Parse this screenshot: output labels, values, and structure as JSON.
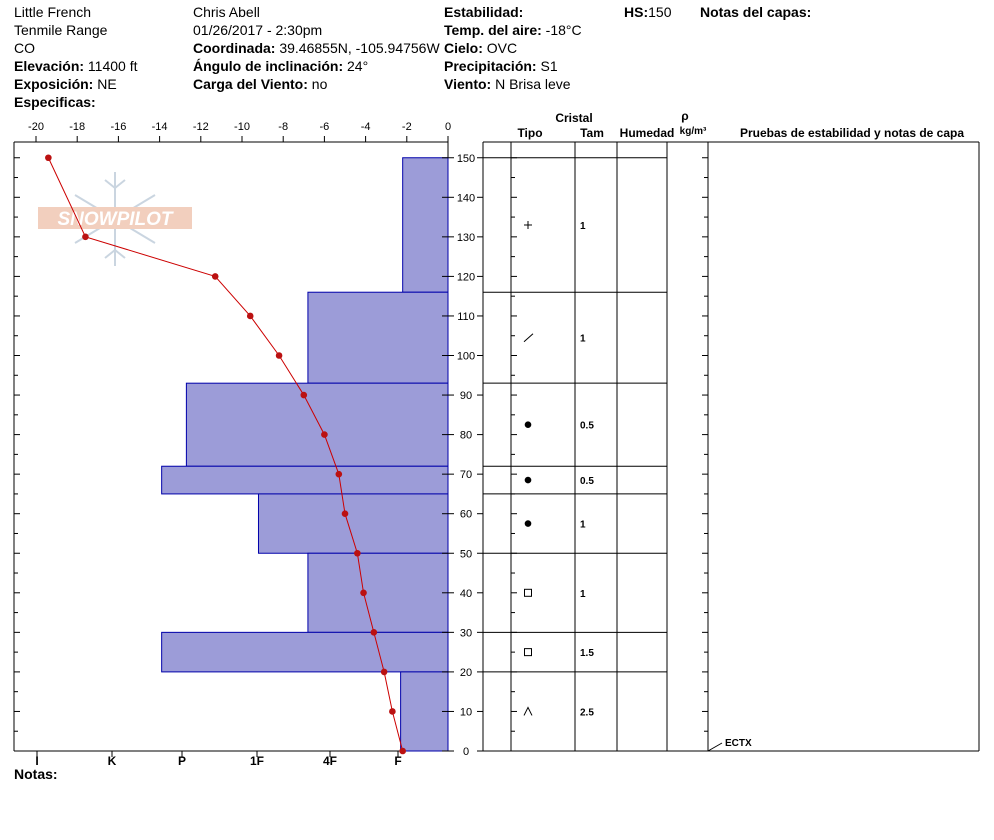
{
  "header": {
    "location": [
      "Little French",
      "Tenmile Range",
      "CO"
    ],
    "elevation_label": "Elevación:",
    "elevation": "11400 ft",
    "aspect_label": "Exposición:",
    "aspect": "NE",
    "specifics_label": "Especificas:",
    "observer": "Chris Abell",
    "datetime": "01/26/2017 - 2:30pm",
    "coord_label": "Coordinada:",
    "coord": "39.46855N, -105.94756W",
    "slope_label": "Ángulo de inclinación:",
    "slope": "24°",
    "wind_load_label": "Carga del Viento:",
    "wind_load": "no",
    "stability_label": "Estabilidad:",
    "air_temp_label": "Temp. del aire:",
    "air_temp": "-18°C",
    "sky_label": "Cielo:",
    "sky": "OVC",
    "precip_label": "Precipitación:",
    "precip": "S1",
    "wind_label": "Viento:",
    "wind": "N  Brisa leve",
    "hs_label": "HS:",
    "hs": "150",
    "layer_notes_label": "Notas del capas:",
    "notes_label": "Notas:"
  },
  "watermark": {
    "text": "SNOWPILOT"
  },
  "table": {
    "crystal_header": "Cristal",
    "type_header": "Tipo",
    "size_header": "Tam",
    "moisture_header": "Humedad",
    "density_symbol": "ρ",
    "density_units": "kg/m³",
    "tests_header": "Pruebas de estabilidad y notas de capa"
  },
  "chart_data": {
    "type": "snow_profile",
    "temperature_axis": {
      "ticks": [
        -20,
        -18,
        -16,
        -14,
        -12,
        -10,
        -8,
        -6,
        -4,
        -2,
        0
      ],
      "range": [
        -20.6,
        0
      ]
    },
    "height_axis": {
      "ticks": [
        0,
        10,
        20,
        30,
        40,
        50,
        60,
        70,
        80,
        90,
        100,
        110,
        120,
        130,
        140,
        150
      ],
      "range": [
        0,
        150
      ]
    },
    "hardness_axis": {
      "labels": [
        "I",
        "K",
        "P",
        "1F",
        "4F",
        "F"
      ]
    },
    "temperature_profile": [
      {
        "h": 150,
        "t": -19.4
      },
      {
        "h": 130,
        "t": -17.6
      },
      {
        "h": 120,
        "t": -11.3
      },
      {
        "h": 110,
        "t": -9.6
      },
      {
        "h": 100,
        "t": -8.2
      },
      {
        "h": 90,
        "t": -7.0
      },
      {
        "h": 80,
        "t": -6.0
      },
      {
        "h": 70,
        "t": -5.3
      },
      {
        "h": 60,
        "t": -5.0
      },
      {
        "h": 50,
        "t": -4.4
      },
      {
        "h": 40,
        "t": -4.1
      },
      {
        "h": 30,
        "t": -3.6
      },
      {
        "h": 20,
        "t": -3.1
      },
      {
        "h": 10,
        "t": -2.7
      },
      {
        "h": 0,
        "t": -2.2
      }
    ],
    "layers": [
      {
        "top": 150,
        "bottom": 116,
        "hardness_temp": -2.2,
        "grain": "+",
        "size": "1"
      },
      {
        "top": 116,
        "bottom": 93,
        "hardness_temp": -6.8,
        "grain": "/",
        "size": "1"
      },
      {
        "top": 93,
        "bottom": 72,
        "hardness_temp": -12.7,
        "grain": "●",
        "size": "0.5"
      },
      {
        "top": 72,
        "bottom": 65,
        "hardness_temp": -13.9,
        "grain": "●",
        "size": "0.5"
      },
      {
        "top": 65,
        "bottom": 50,
        "hardness_temp": -9.2,
        "grain": "●",
        "size": "1"
      },
      {
        "top": 50,
        "bottom": 30,
        "hardness_temp": -6.8,
        "grain": "□",
        "size": "1"
      },
      {
        "top": 30,
        "bottom": 20,
        "hardness_temp": -13.9,
        "grain": "□",
        "size": "1.5"
      },
      {
        "top": 20,
        "bottom": 0,
        "hardness_temp": -2.3,
        "grain": "^",
        "size": "2.5"
      }
    ],
    "stability_tests": [
      {
        "h": 0,
        "label": "ECTX"
      }
    ]
  },
  "colors": {
    "layer_fill": "#9C9CD8",
    "layer_stroke": "#0000AA",
    "temp_line": "#CC0000",
    "temp_dot": "#BB1111"
  }
}
